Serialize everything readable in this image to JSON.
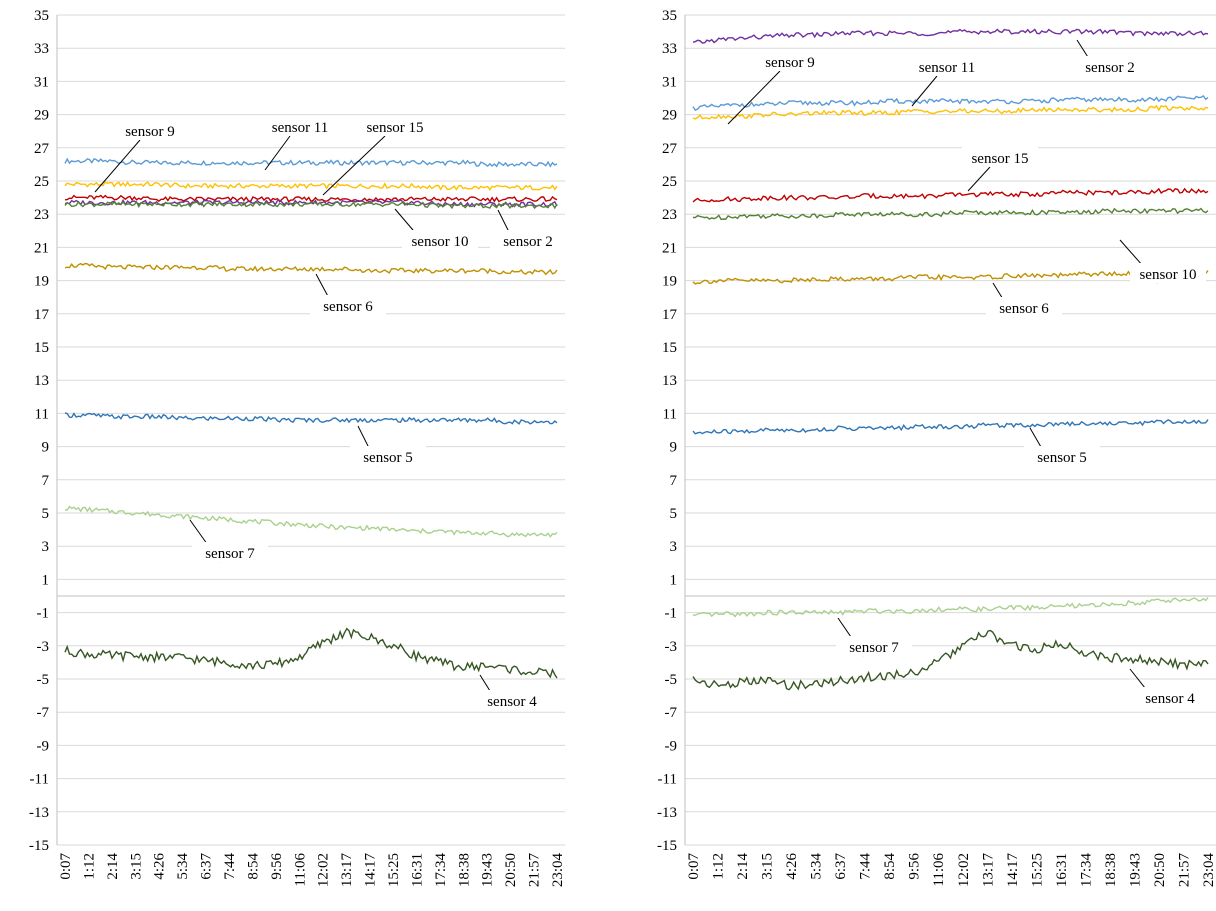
{
  "chart_data": [
    {
      "type": "line",
      "ylim": [
        -15,
        35
      ],
      "yticks": [
        35,
        33,
        31,
        29,
        27,
        25,
        23,
        21,
        19,
        17,
        15,
        13,
        11,
        9,
        7,
        5,
        3,
        1,
        -1,
        -3,
        -5,
        -7,
        -9,
        -11,
        -13,
        -15
      ],
      "xticks": [
        "0:07",
        "1:12",
        "2:14",
        "3:15",
        "4:26",
        "5:34",
        "6:37",
        "7:44",
        "8:54",
        "9:56",
        "11:06",
        "12:02",
        "13:17",
        "14:17",
        "15:25",
        "16:31",
        "17:34",
        "18:38",
        "19:43",
        "20:50",
        "21:57",
        "23:04"
      ],
      "grid": true,
      "series": [
        {
          "name": "sensor 11",
          "color": "#5b9bd5",
          "values": [
            26.2,
            26.2,
            26.2,
            26.1,
            26.1,
            26.1,
            26.1,
            26.1,
            26.1,
            26.1,
            26.1,
            26.1,
            26.1,
            26.1,
            26.1,
            26.1,
            26.1,
            26.1,
            26.0,
            26.0,
            26.0,
            26.0
          ]
        },
        {
          "name": "sensor 9",
          "color": "#ffc000",
          "values": [
            24.8,
            24.8,
            24.8,
            24.8,
            24.8,
            24.7,
            24.7,
            24.7,
            24.7,
            24.7,
            24.7,
            24.7,
            24.7,
            24.7,
            24.7,
            24.7,
            24.6,
            24.6,
            24.6,
            24.6,
            24.6,
            24.6
          ]
        },
        {
          "name": "sensor 15",
          "color": "#c00000",
          "values": [
            24.0,
            24.0,
            24.0,
            24.0,
            23.9,
            23.9,
            23.9,
            23.9,
            23.9,
            23.9,
            23.9,
            23.9,
            23.9,
            23.9,
            23.9,
            23.9,
            23.9,
            23.9,
            23.9,
            23.9,
            23.9,
            23.9
          ]
        },
        {
          "name": "sensor 2",
          "color": "#7030a0",
          "values": [
            23.7,
            23.7,
            23.7,
            23.7,
            23.7,
            23.7,
            23.7,
            23.7,
            23.7,
            23.7,
            23.7,
            23.7,
            23.7,
            23.7,
            23.7,
            23.7,
            23.6,
            23.6,
            23.6,
            23.6,
            23.6,
            23.6
          ]
        },
        {
          "name": "sensor 10",
          "color": "#548235",
          "values": [
            23.6,
            23.6,
            23.6,
            23.6,
            23.6,
            23.6,
            23.6,
            23.6,
            23.6,
            23.6,
            23.6,
            23.6,
            23.6,
            23.6,
            23.6,
            23.6,
            23.5,
            23.5,
            23.5,
            23.5,
            23.5,
            23.5
          ]
        },
        {
          "name": "sensor 6",
          "color": "#bf9000",
          "values": [
            19.9,
            19.9,
            19.8,
            19.8,
            19.8,
            19.8,
            19.8,
            19.7,
            19.7,
            19.7,
            19.7,
            19.7,
            19.7,
            19.6,
            19.6,
            19.6,
            19.6,
            19.6,
            19.6,
            19.5,
            19.5,
            19.5
          ]
        },
        {
          "name": "sensor 5",
          "color": "#2e75b6",
          "values": [
            10.9,
            10.9,
            10.8,
            10.8,
            10.8,
            10.7,
            10.7,
            10.7,
            10.7,
            10.6,
            10.6,
            10.6,
            10.6,
            10.6,
            10.6,
            10.6,
            10.6,
            10.6,
            10.6,
            10.5,
            10.5,
            10.5
          ]
        },
        {
          "name": "sensor 7",
          "color": "#a9d18e",
          "values": [
            5.3,
            5.2,
            5.1,
            5.0,
            4.9,
            4.8,
            4.7,
            4.6,
            4.5,
            4.4,
            4.3,
            4.2,
            4.1,
            4.1,
            4.0,
            3.9,
            3.9,
            3.8,
            3.8,
            3.7,
            3.7,
            3.7
          ]
        },
        {
          "name": "sensor 4",
          "color": "#375623",
          "values": [
            -3.3,
            -3.5,
            -3.6,
            -3.6,
            -3.7,
            -3.7,
            -3.9,
            -4.0,
            -4.2,
            -4.1,
            -3.7,
            -2.8,
            -2.2,
            -2.5,
            -3.0,
            -3.6,
            -4.0,
            -4.3,
            -4.2,
            -4.4,
            -4.6,
            -4.7
          ]
        }
      ],
      "annotations": [
        {
          "text": "sensor 9",
          "series": "sensor 9"
        },
        {
          "text": "sensor 11",
          "series": "sensor 11"
        },
        {
          "text": "sensor 15",
          "series": "sensor 15"
        },
        {
          "text": "sensor 10",
          "series": "sensor 10"
        },
        {
          "text": "sensor 2",
          "series": "sensor 2"
        },
        {
          "text": "sensor 6",
          "series": "sensor 6"
        },
        {
          "text": "sensor 5",
          "series": "sensor 5"
        },
        {
          "text": "sensor 7",
          "series": "sensor 7"
        },
        {
          "text": "sensor 4",
          "series": "sensor 4"
        }
      ]
    },
    {
      "type": "line",
      "ylim": [
        -15,
        35
      ],
      "yticks": [
        35,
        33,
        31,
        29,
        27,
        25,
        23,
        21,
        19,
        17,
        15,
        13,
        11,
        9,
        7,
        5,
        3,
        1,
        -1,
        -3,
        -5,
        -7,
        -9,
        -11,
        -13,
        -15
      ],
      "xticks": [
        "0:07",
        "1:12",
        "2:14",
        "3:15",
        "4:26",
        "5:34",
        "6:37",
        "7:44",
        "8:54",
        "9:56",
        "11:06",
        "12:02",
        "13:17",
        "14:17",
        "15:25",
        "16:31",
        "17:34",
        "18:38",
        "19:43",
        "20:50",
        "21:57",
        "23:04"
      ],
      "grid": true,
      "series": [
        {
          "name": "sensor 2",
          "color": "#7030a0",
          "values": [
            33.3,
            33.5,
            33.6,
            33.7,
            33.8,
            33.8,
            33.9,
            33.9,
            33.9,
            33.9,
            33.9,
            34.0,
            34.0,
            34.0,
            34.0,
            34.0,
            34.0,
            34.0,
            33.9,
            33.9,
            33.9,
            33.9
          ]
        },
        {
          "name": "sensor 11",
          "color": "#5b9bd5",
          "values": [
            29.4,
            29.5,
            29.6,
            29.6,
            29.7,
            29.7,
            29.7,
            29.7,
            29.8,
            29.8,
            29.8,
            29.8,
            29.8,
            29.8,
            29.8,
            29.9,
            29.9,
            29.9,
            29.9,
            29.9,
            30.0,
            30.0
          ]
        },
        {
          "name": "sensor 9",
          "color": "#ffc000",
          "values": [
            28.8,
            28.9,
            28.9,
            29.0,
            29.0,
            29.1,
            29.1,
            29.1,
            29.1,
            29.2,
            29.2,
            29.2,
            29.2,
            29.2,
            29.3,
            29.3,
            29.3,
            29.3,
            29.3,
            29.4,
            29.4,
            29.4
          ]
        },
        {
          "name": "sensor 15",
          "color": "#c00000",
          "values": [
            23.8,
            23.9,
            23.9,
            24.0,
            24.0,
            24.0,
            24.0,
            24.1,
            24.1,
            24.1,
            24.1,
            24.2,
            24.2,
            24.2,
            24.2,
            24.3,
            24.3,
            24.3,
            24.3,
            24.4,
            24.4,
            24.4
          ]
        },
        {
          "name": "sensor 10",
          "color": "#548235",
          "values": [
            22.8,
            22.8,
            22.9,
            22.9,
            22.9,
            22.9,
            23.0,
            23.0,
            23.0,
            23.0,
            23.0,
            23.1,
            23.1,
            23.1,
            23.1,
            23.1,
            23.1,
            23.2,
            23.2,
            23.2,
            23.2,
            23.2
          ]
        },
        {
          "name": "sensor 6",
          "color": "#bf9000",
          "values": [
            18.9,
            19.0,
            19.0,
            19.0,
            19.0,
            19.1,
            19.1,
            19.1,
            19.1,
            19.2,
            19.2,
            19.2,
            19.2,
            19.3,
            19.3,
            19.3,
            19.4,
            19.4,
            19.4,
            19.5,
            19.5,
            19.5
          ]
        },
        {
          "name": "sensor 5",
          "color": "#2e75b6",
          "values": [
            9.8,
            9.9,
            9.9,
            10.0,
            10.0,
            10.0,
            10.1,
            10.1,
            10.1,
            10.2,
            10.2,
            10.2,
            10.3,
            10.3,
            10.3,
            10.4,
            10.4,
            10.4,
            10.4,
            10.5,
            10.5,
            10.5
          ]
        },
        {
          "name": "sensor 7",
          "color": "#a9d18e",
          "values": [
            -1.2,
            -1.1,
            -1.1,
            -1.0,
            -1.0,
            -1.0,
            -1.0,
            -0.9,
            -0.9,
            -0.9,
            -0.8,
            -0.8,
            -0.8,
            -0.7,
            -0.7,
            -0.6,
            -0.6,
            -0.5,
            -0.4,
            -0.3,
            -0.2,
            -0.2
          ]
        },
        {
          "name": "sensor 4",
          "color": "#375623",
          "values": [
            -5.0,
            -5.4,
            -5.2,
            -5.1,
            -5.4,
            -5.3,
            -5.1,
            -4.9,
            -4.8,
            -4.6,
            -4.0,
            -3.0,
            -2.2,
            -3.0,
            -3.2,
            -2.9,
            -3.4,
            -3.7,
            -3.8,
            -4.0,
            -4.1,
            -4.1
          ]
        }
      ],
      "annotations": [
        {
          "text": "sensor 9",
          "series": "sensor 9"
        },
        {
          "text": "sensor 11",
          "series": "sensor 11"
        },
        {
          "text": "sensor 2",
          "series": "sensor 2"
        },
        {
          "text": "sensor 15",
          "series": "sensor 15"
        },
        {
          "text": "sensor 10",
          "series": "sensor 10"
        },
        {
          "text": "sensor 6",
          "series": "sensor 6"
        },
        {
          "text": "sensor 5",
          "series": "sensor 5"
        },
        {
          "text": "sensor 7",
          "series": "sensor 7"
        },
        {
          "text": "sensor 4",
          "series": "sensor 4"
        }
      ]
    }
  ]
}
